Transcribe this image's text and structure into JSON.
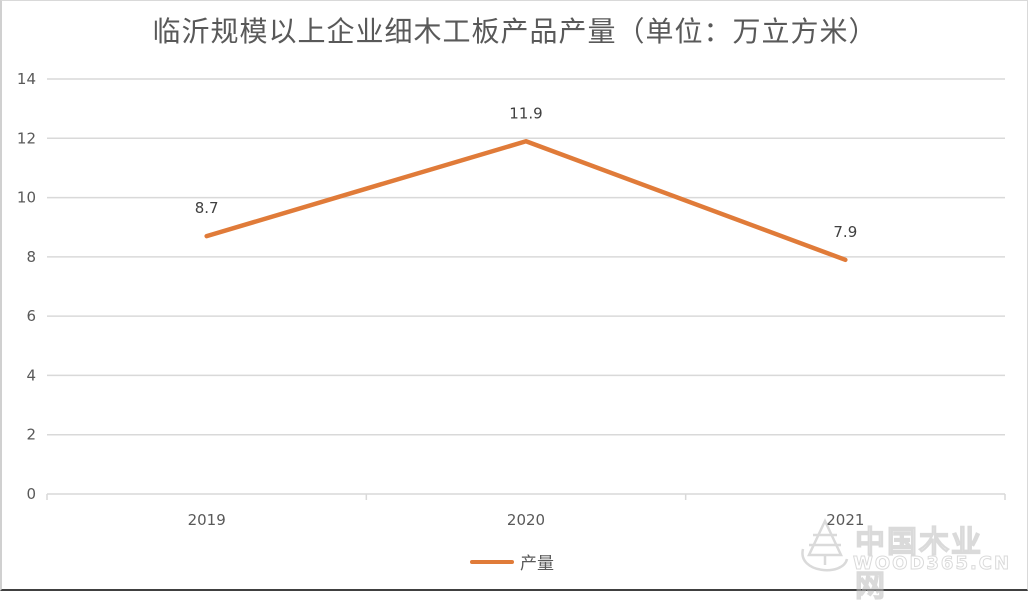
{
  "title": "临沂规模以上企业细木工板产品产量（单位：万立方米）",
  "legend": {
    "label": "产量",
    "color": "#E07B39"
  },
  "watermark": {
    "cn": "中国木业网",
    "en": "WOOD365.CN"
  },
  "colors": {
    "series": "#E07B39",
    "grid": "#d9d9d9",
    "axis_text": "#595959"
  },
  "chart_data": {
    "type": "line",
    "title": "临沂规模以上企业细木工板产品产量（单位：万立方米）",
    "categories": [
      "2019",
      "2020",
      "2021"
    ],
    "series": [
      {
        "name": "产量",
        "values": [
          8.7,
          11.9,
          7.9
        ],
        "color": "#E07B39"
      }
    ],
    "data_labels": [
      "8.7",
      "11.9",
      "7.9"
    ],
    "xlabel": "",
    "ylabel": "",
    "ylim": [
      0,
      14
    ],
    "yticks": [
      0,
      2,
      4,
      6,
      8,
      10,
      12,
      14
    ],
    "grid": true,
    "legend_position": "bottom"
  }
}
